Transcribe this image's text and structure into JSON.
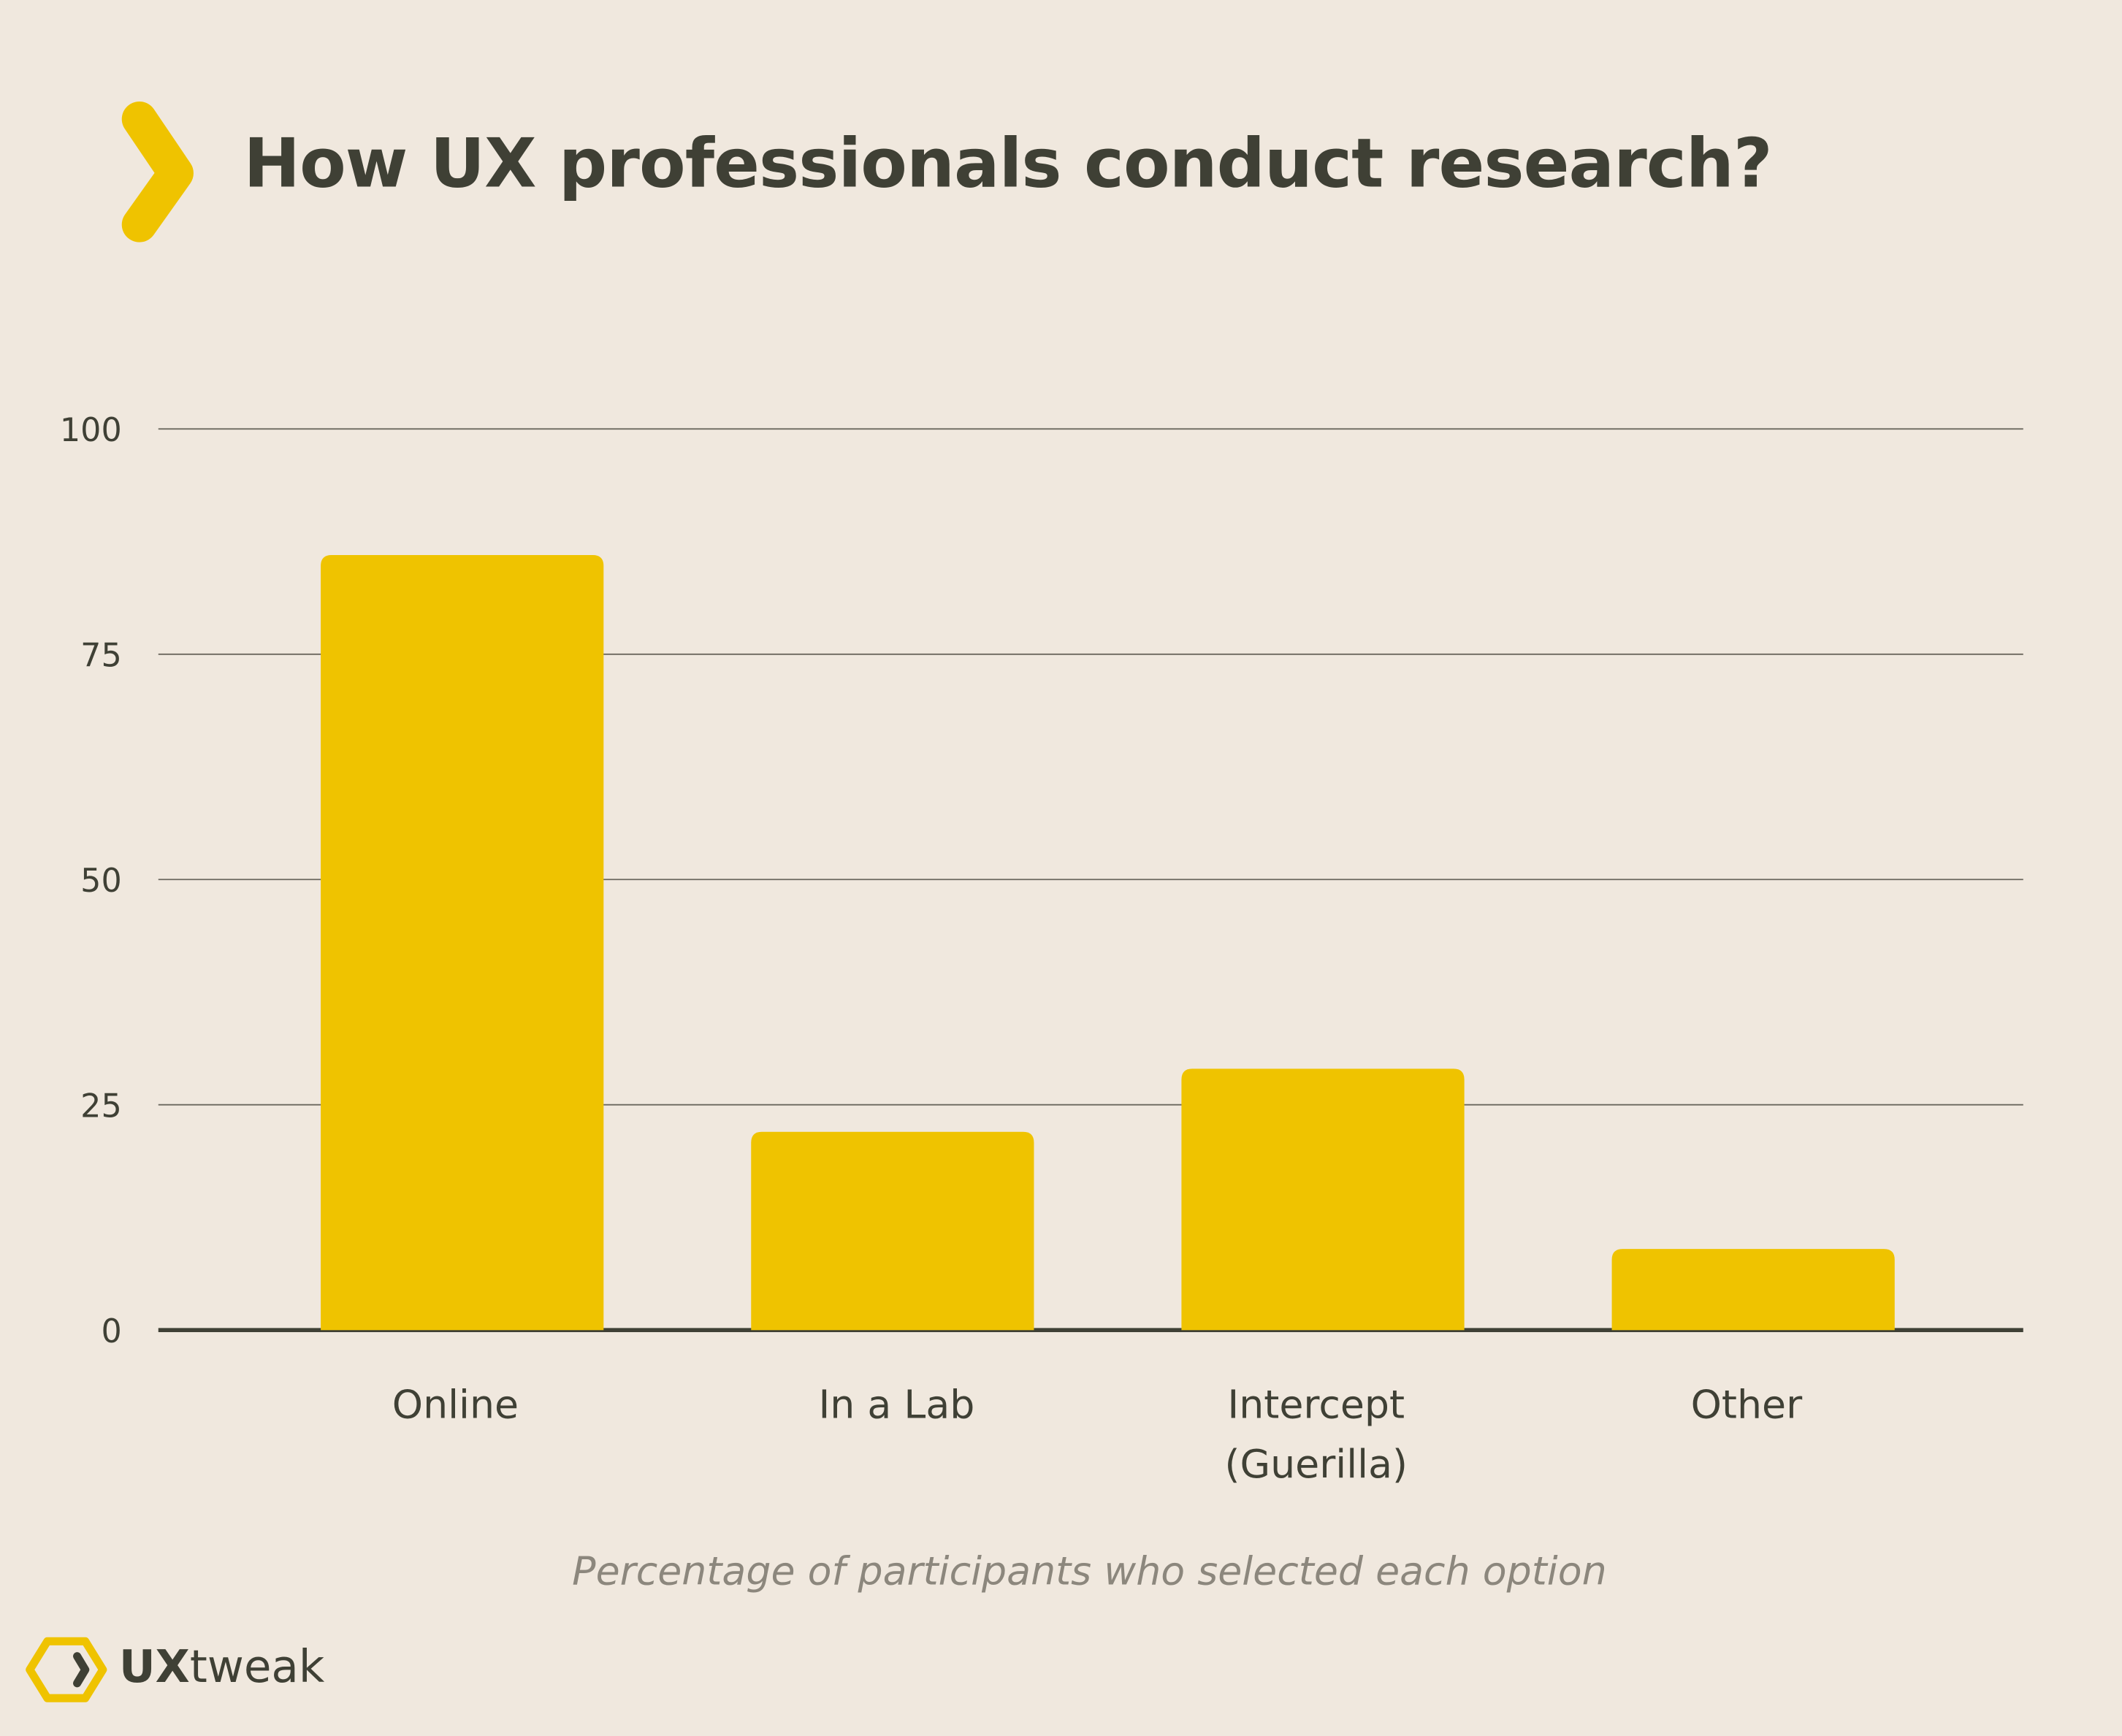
{
  "title": "How UX professionals conduct research?",
  "caption": "Percentage of participants who selected each option",
  "logo": {
    "bold": "UX",
    "rest": "tweak"
  },
  "colors": {
    "bar": "#efc300",
    "text": "#3f4035",
    "background": "#f0e8de",
    "accent": "#efc300"
  },
  "chart_data": {
    "type": "bar",
    "title": "How UX professionals conduct research?",
    "xlabel": "Percentage of participants who selected each option",
    "ylabel": "",
    "categories": [
      "Online",
      "In a Lab",
      "Intercept (Guerilla)",
      "Other"
    ],
    "category_lines": [
      [
        "Online"
      ],
      [
        "In a Lab"
      ],
      [
        "Intercept",
        "(Guerilla)"
      ],
      [
        "Other"
      ]
    ],
    "values": [
      86,
      22,
      29,
      9
    ],
    "ylim": [
      0,
      100
    ],
    "yticks": [
      0,
      25,
      50,
      75,
      100
    ],
    "grid": true,
    "legend": "none"
  }
}
